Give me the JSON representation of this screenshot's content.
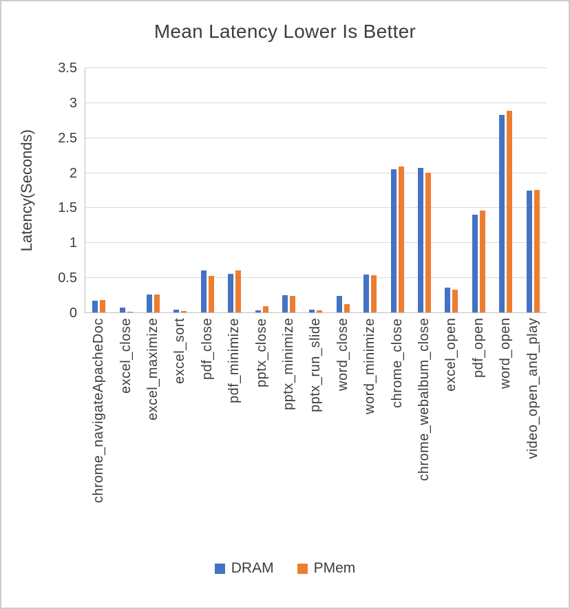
{
  "chart_data": {
    "type": "bar",
    "title": "Mean Latency Lower Is Better",
    "ylabel": "Latency(Seconds)",
    "xlabel": "",
    "ylim": [
      0,
      3.5
    ],
    "yticks": [
      "0",
      "0.5",
      "1",
      "1.5",
      "2",
      "2.5",
      "3",
      "3.5"
    ],
    "grid": true,
    "legend_position": "bottom",
    "categories": [
      "chrome_navigateApacheDoc",
      "excel_close",
      "excel_maximize",
      "excel_sort",
      "pdf_close",
      "pdf_minimize",
      "pptx_close",
      "pptx_minimize",
      "pptx_run_slide",
      "word_close",
      "word_minimize",
      "chrome_close",
      "chrome_webalbum_close",
      "excel_open",
      "pdf_open",
      "word_open",
      "video_open_and_play"
    ],
    "series": [
      {
        "name": "DRAM",
        "color": "#4472C4",
        "values": [
          0.18,
          0.08,
          0.27,
          0.05,
          0.61,
          0.56,
          0.04,
          0.26,
          0.05,
          0.25,
          0.55,
          2.05,
          2.07,
          0.36,
          1.41,
          2.83,
          1.75
        ]
      },
      {
        "name": "PMem",
        "color": "#ED7D31",
        "values": [
          0.19,
          0.02,
          0.27,
          0.03,
          0.53,
          0.61,
          0.1,
          0.25,
          0.04,
          0.13,
          0.54,
          2.09,
          2.01,
          0.33,
          1.46,
          2.89,
          1.76
        ]
      }
    ]
  },
  "colors": {
    "gridline": "#d9d9d9",
    "axis_line": "#bfbfbf",
    "text": "#3d3d3d",
    "frame_border": "#cccccc",
    "background": "#ffffff"
  }
}
